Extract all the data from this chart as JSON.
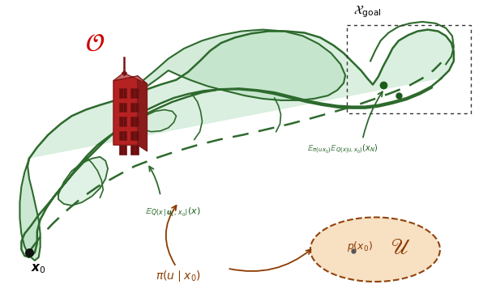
{
  "bg_color": "#ffffff",
  "manifold_fill": "#d4edda",
  "manifold_fill_dark": "#b8dfc0",
  "manifold_edge": "#2d6a2d",
  "dashed_color": "#2d6a2d",
  "text_color_green": "#1a5c1a",
  "text_color_brown": "#8b3a00",
  "text_color_red": "#cc0000",
  "building_dark": "#7a1515",
  "building_mid": "#b52222",
  "building_roof": "#c86464",
  "building_side": "#8b1c1c",
  "ellipse_fill": "#f8dfc0",
  "ellipse_edge": "#8b3a00",
  "dot_black": "#111111",
  "dot_green": "#1a5c1a",
  "goal_box_color": "#555555"
}
